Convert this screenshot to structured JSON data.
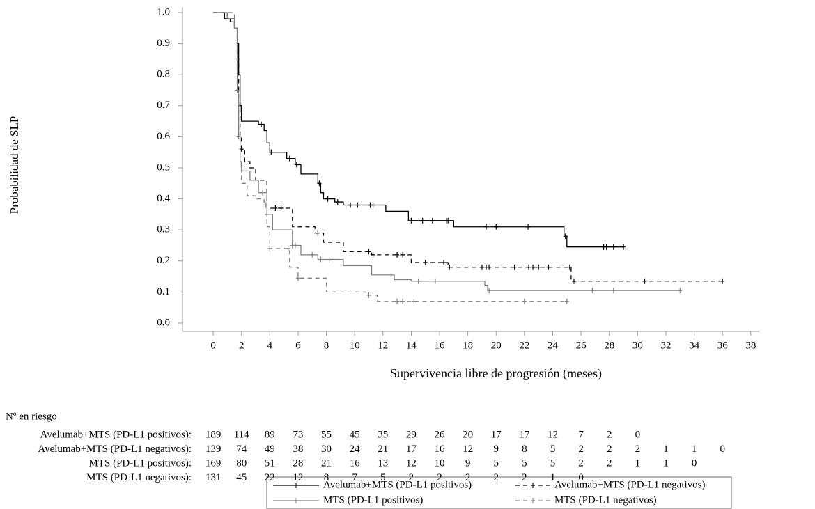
{
  "chart_data": {
    "type": "km",
    "ylabel": "Probabilidad de SLP",
    "xlabel": "Supervivencia libre de progresión (meses)",
    "xlim": [
      -2.17,
      38.6
    ],
    "ylim": [
      -0.027,
      1.018
    ],
    "xticks": [
      0,
      2,
      4,
      6,
      8,
      10,
      12,
      14,
      16,
      18,
      20,
      22,
      24,
      26,
      28,
      30,
      32,
      34,
      36,
      38
    ],
    "yticks": [
      {
        "value": 0,
        "label": "0.0"
      },
      0.1,
      0.2,
      0.3,
      0.4,
      0.5,
      0.6,
      0.7,
      0.8,
      0.9,
      {
        "value": 1,
        "label": "1.0"
      }
    ],
    "series": [
      {
        "name": "Avelumab+MTS (PD-L1 positivos)",
        "color": "#000000",
        "dash": false,
        "x": [
          0,
          0.8,
          1.2,
          1.5,
          1.7,
          1.8,
          1.9,
          2.0,
          3.2,
          3.6,
          3.8,
          4.0,
          5.2,
          5.8,
          6.2,
          7.4,
          7.6,
          7.8,
          8.6,
          9.2,
          12.2,
          13.8,
          17.0,
          24.8,
          25.0,
          29.0
        ],
        "values": [
          1.0,
          0.98,
          0.97,
          0.95,
          0.9,
          0.8,
          0.7,
          0.65,
          0.64,
          0.62,
          0.58,
          0.55,
          0.53,
          0.51,
          0.48,
          0.45,
          0.42,
          0.4,
          0.39,
          0.38,
          0.36,
          0.33,
          0.31,
          0.28,
          0.245,
          0.245
        ],
        "censored": [
          1.9,
          3.4,
          4.1,
          5.4,
          5.9,
          7.5,
          8.1,
          8.8,
          9.7,
          10.2,
          11.1,
          11.3,
          14.0,
          14.8,
          15.5,
          16.5,
          16.6,
          19.3,
          20.0,
          22.2,
          22.3,
          24.9,
          27.6,
          27.8,
          28.3,
          29.0
        ]
      },
      {
        "name": "Avelumab+MTS (PD-L1 negativos)",
        "color": "#000000",
        "dash": true,
        "x": [
          0,
          1.0,
          1.5,
          1.7,
          1.8,
          1.9,
          2.0,
          2.2,
          2.6,
          3.0,
          3.8,
          5.6,
          7.2,
          7.8,
          9.2,
          11.2,
          14.0,
          16.6,
          25.3,
          36.0
        ],
        "values": [
          1.0,
          0.98,
          0.95,
          0.85,
          0.7,
          0.6,
          0.56,
          0.52,
          0.5,
          0.46,
          0.37,
          0.31,
          0.29,
          0.26,
          0.23,
          0.22,
          0.195,
          0.18,
          0.135,
          0.135
        ],
        "censored": [
          2.0,
          4.4,
          4.8,
          7.4,
          11.0,
          11.3,
          13.0,
          13.4,
          15.0,
          16.3,
          16.7,
          19.0,
          19.3,
          19.5,
          21.3,
          22.3,
          22.6,
          23.0,
          23.7,
          25.2,
          25.5,
          30.5,
          36.0
        ]
      },
      {
        "name": "MTS (PD-L1 positivos)",
        "color": "#808080",
        "dash": false,
        "x": [
          0,
          1.0,
          1.5,
          1.7,
          1.8,
          1.9,
          2.0,
          2.6,
          3.2,
          3.8,
          4.2,
          5.6,
          6.2,
          7.4,
          9.2,
          11.2,
          12.8,
          14.0,
          19.2,
          19.4,
          33.0
        ],
        "values": [
          1.0,
          0.98,
          0.95,
          0.75,
          0.6,
          0.52,
          0.49,
          0.46,
          0.42,
          0.35,
          0.3,
          0.25,
          0.22,
          0.205,
          0.185,
          0.155,
          0.14,
          0.135,
          0.12,
          0.105,
          0.105
        ],
        "censored": [
          1.7,
          3.5,
          3.8,
          5.6,
          5.8,
          7.0,
          7.6,
          8.2,
          14.5,
          15.7,
          19.5,
          26.8,
          28.3,
          33.0
        ]
      },
      {
        "name": "MTS (PD-L1 negativos)",
        "color": "#808080",
        "dash": true,
        "x": [
          0,
          1.5,
          1.7,
          1.8,
          1.9,
          2.0,
          2.4,
          3.0,
          3.6,
          3.8,
          4.0,
          5.4,
          6.0,
          8.0,
          10.8,
          11.6,
          25.0
        ],
        "values": [
          1.0,
          0.95,
          0.75,
          0.6,
          0.5,
          0.45,
          0.41,
          0.4,
          0.38,
          0.31,
          0.24,
          0.18,
          0.145,
          0.1,
          0.09,
          0.07,
          0.07
        ],
        "censored": [
          1.7,
          1.8,
          3.7,
          4.0,
          5.3,
          6.0,
          11.0,
          13.0,
          13.4,
          14.2,
          22.0,
          25.0
        ]
      }
    ],
    "risk_table": {
      "title": "Nº en riesgo",
      "rows": [
        {
          "label": "Avelumab+MTS (PD-L1 positivos):",
          "values": [
            189,
            114,
            89,
            73,
            55,
            45,
            35,
            29,
            26,
            20,
            17,
            17,
            12,
            7,
            2,
            0
          ]
        },
        {
          "label": "Avelumab+MTS (PD-L1 negativos):",
          "values": [
            139,
            74,
            49,
            38,
            30,
            24,
            21,
            17,
            16,
            12,
            9,
            8,
            5,
            2,
            2,
            2,
            1,
            1,
            0
          ]
        },
        {
          "label": "MTS (PD-L1 positivos):",
          "values": [
            169,
            80,
            51,
            28,
            21,
            16,
            13,
            12,
            10,
            9,
            5,
            5,
            5,
            2,
            2,
            1,
            1,
            0
          ]
        },
        {
          "label": "MTS (PD-L1 negativos):",
          "values": [
            131,
            45,
            22,
            12,
            8,
            7,
            5,
            2,
            2,
            2,
            2,
            2,
            1,
            0
          ]
        }
      ]
    }
  }
}
